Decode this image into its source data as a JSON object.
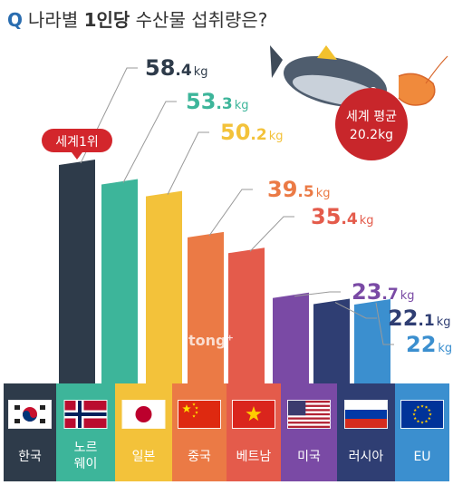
{
  "title": {
    "prefix": "Q",
    "text": "나라별 ",
    "bold": "1인당",
    "rest": " 수산물 섭취량은?"
  },
  "badge_rank": "세계1위",
  "world_average": {
    "label": "세계 평균",
    "value": "20.2kg"
  },
  "watermark": "tong⁺",
  "colors": {
    "korea": "#2e3b4a",
    "norway": "#3db59a",
    "japan": "#f3c23a",
    "china": "#eb7a45",
    "vietnam": "#e45b4b",
    "usa": "#7a4aa5",
    "russia": "#2f3e73",
    "eu": "#3b8fcf",
    "average": "#c8262b"
  },
  "chart_data": {
    "type": "bar",
    "title": "나라별 1인당 수산물 섭취량은?",
    "categories": [
      "한국",
      "노르웨이",
      "일본",
      "중국",
      "베트남",
      "미국",
      "러시아",
      "EU"
    ],
    "category_lines": [
      [
        "한국"
      ],
      [
        "노르",
        "웨이"
      ],
      [
        "일본"
      ],
      [
        "중국"
      ],
      [
        "베트남"
      ],
      [
        "미국"
      ],
      [
        "러시아"
      ],
      [
        "EU"
      ]
    ],
    "values": [
      58.4,
      53.3,
      50.2,
      39.5,
      35.4,
      23.7,
      22.1,
      22
    ],
    "value_labels": [
      {
        "main": "58",
        "frac": ".4",
        "unit": "kg"
      },
      {
        "main": "53",
        "frac": ".3",
        "unit": "kg"
      },
      {
        "main": "50",
        "frac": ".2",
        "unit": "kg"
      },
      {
        "main": "39",
        "frac": ".5",
        "unit": "kg"
      },
      {
        "main": "35",
        "frac": ".4",
        "unit": "kg"
      },
      {
        "main": "23",
        "frac": ".7",
        "unit": "kg"
      },
      {
        "main": "22",
        "frac": ".1",
        "unit": "kg"
      },
      {
        "main": "22",
        "frac": "",
        "unit": "kg"
      }
    ],
    "unit": "kg",
    "flags": [
      "korea-flag",
      "norway-flag",
      "japan-flag",
      "china-flag",
      "vietnam-flag",
      "usa-flag",
      "russia-flag",
      "eu-flag"
    ]
  }
}
